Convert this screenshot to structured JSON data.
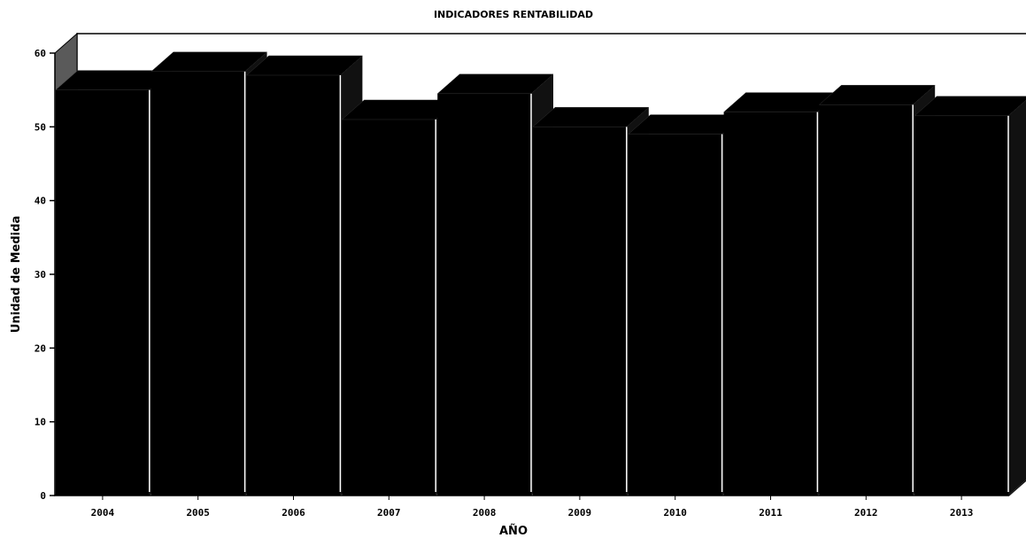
{
  "chart_data": {
    "type": "bar",
    "title": "INDICADORES RENTABILIDAD",
    "xlabel": "AÑO",
    "ylabel": "Unidad de Medida",
    "categories": [
      "2004",
      "2005",
      "2006",
      "2007",
      "2008",
      "2009",
      "2010",
      "2011",
      "2012",
      "2013"
    ],
    "values": [
      55,
      57.5,
      57,
      51,
      54.5,
      50,
      49,
      52,
      53,
      51.5
    ],
    "ylim": [
      0,
      60
    ],
    "yticks": [
      0,
      10,
      20,
      30,
      40,
      50,
      60
    ],
    "grid": false,
    "legend": "none",
    "style": "3d",
    "colors": {
      "bar": "#000000",
      "background": "#ffffff",
      "axis": "#000000"
    }
  }
}
